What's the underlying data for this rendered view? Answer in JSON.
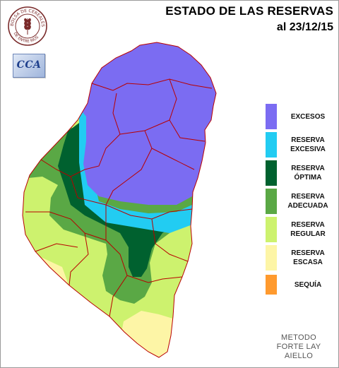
{
  "title": {
    "line1": "ESTADO DE LAS RESERVAS",
    "line2": "al 23/12/15"
  },
  "logos": {
    "seal_text_top": "BOLSA DE CEREALES",
    "seal_text_bottom": "DE ENTRE RIOS",
    "cca_text": "CCA"
  },
  "legend": [
    {
      "line1": "EXCESOS",
      "line2": "",
      "color": "#7b6cf2"
    },
    {
      "line1": "RESERVA",
      "line2": "EXCESIVA",
      "color": "#22ccf2"
    },
    {
      "line1": "RESERVA",
      "line2": "ÓPTIMA",
      "color": "#00612f"
    },
    {
      "line1": "RESERVA",
      "line2": "ADECUADA",
      "color": "#5aa845"
    },
    {
      "line1": "RESERVA",
      "line2": "REGULAR",
      "color": "#cdf26e"
    },
    {
      "line1": "RESERVA",
      "line2": "ESCASA",
      "color": "#fdf5a6"
    },
    {
      "line1": "SEQUÍA",
      "line2": "",
      "color": "#ff9a2e"
    }
  ],
  "method": {
    "line1": "METODO",
    "line2": "FORTE LAY",
    "line3": "AIELLO"
  },
  "colors": {
    "excesos": "#7b6cf2",
    "excesiva": "#22ccf2",
    "optima": "#00612f",
    "adecuada": "#5aa845",
    "regular": "#cdf26e",
    "escasa": "#fdf5a6",
    "borders": "#b80000"
  }
}
